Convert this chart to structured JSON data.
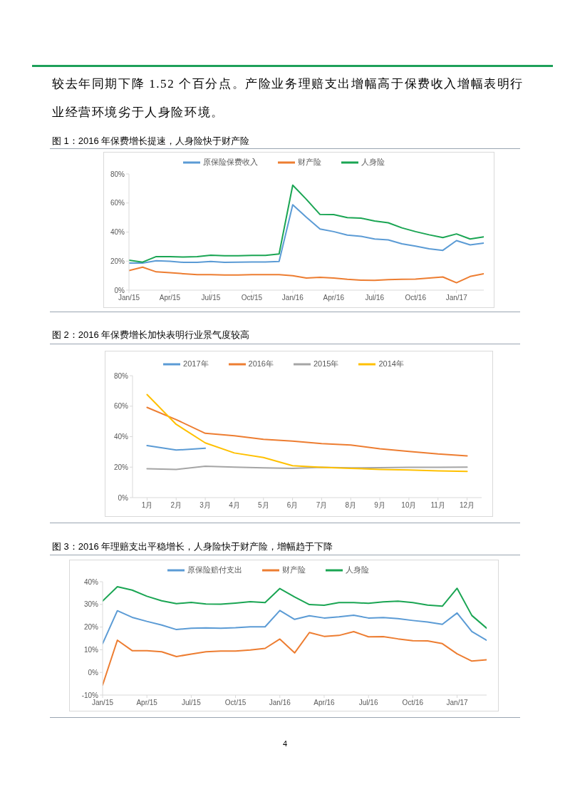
{
  "chart_data": [
    {
      "type": "line",
      "title": "图 1：2016 年保费增长提速，人身险快于财产险",
      "annotations": [
        "较去年同期下降 1.52 个百分点。产险业务理赔支出增幅高于保费收入增幅表明行业经营环境劣于人身险环境。"
      ],
      "categories": [
        "Jan/15",
        null,
        null,
        "Apr/15",
        null,
        null,
        "Jul/15",
        null,
        null,
        "Oct/15",
        null,
        null,
        "Jan/16",
        null,
        null,
        "Apr/16",
        null,
        null,
        "Jul/16",
        null,
        null,
        "Oct/16",
        null,
        null,
        "Jan/17",
        null,
        null
      ],
      "series": [
        {
          "name": "原保险保费收入",
          "color": "#5b9bd5",
          "values": [
            18.6,
            18.6,
            20.2,
            19.9,
            19.1,
            19.1,
            19.8,
            19.1,
            19.3,
            19.4,
            19.4,
            19.8,
            58.8,
            50.2,
            42.1,
            40.3,
            37.9,
            37.1,
            35.2,
            34.6,
            31.9,
            30.3,
            28.5,
            27.4,
            34.1,
            31.2,
            32.4
          ]
        },
        {
          "name": "财产险",
          "color": "#ed7d31",
          "values": [
            13.5,
            15.8,
            12.6,
            12.0,
            11.3,
            10.7,
            10.7,
            10.4,
            10.4,
            10.7,
            10.7,
            10.7,
            9.9,
            8.3,
            8.8,
            8.4,
            7.5,
            6.9,
            6.7,
            7.2,
            7.5,
            7.6,
            8.4,
            9.1,
            5.1,
            9.4,
            11.3
          ]
        },
        {
          "name": "人身险",
          "color": "#1aa553",
          "values": [
            20.6,
            19.3,
            23.1,
            23.1,
            22.8,
            23.1,
            24.1,
            23.7,
            23.7,
            23.9,
            23.9,
            24.9,
            72.3,
            62.5,
            52.1,
            52.0,
            49.9,
            49.6,
            47.6,
            46.4,
            42.9,
            40.3,
            38.1,
            36.2,
            38.7,
            35.2,
            36.7
          ]
        }
      ],
      "ylim": [
        0,
        80
      ],
      "yticks": [
        {
          "value": 0,
          "label": "0%"
        },
        {
          "value": 20,
          "label": "20%"
        },
        {
          "value": 40,
          "label": "40%"
        },
        {
          "value": 60,
          "label": "60%"
        },
        {
          "value": 80,
          "label": "80%"
        }
      ],
      "legend": "top"
    },
    {
      "type": "line",
      "title": "图 2：2016 年保费增长加快表明行业景气度较高",
      "categories": [
        "1月",
        "2月",
        "3月",
        "4月",
        "5月",
        "6月",
        "7月",
        "8月",
        "9月",
        "10月",
        "11月",
        "12月"
      ],
      "series": [
        {
          "name": "2017年",
          "color": "#5b9bd5",
          "values": [
            34.1,
            31.2,
            32.4,
            null,
            null,
            null,
            null,
            null,
            null,
            null,
            null,
            null
          ]
        },
        {
          "name": "2016年",
          "color": "#ed7d31",
          "values": [
            59.2,
            51.2,
            42.2,
            40.6,
            38.2,
            37.1,
            35.4,
            34.5,
            32.1,
            30.3,
            28.6,
            27.4
          ]
        },
        {
          "name": "2015年",
          "color": "#a5a5a5",
          "values": [
            19.0,
            18.5,
            20.6,
            20.0,
            19.5,
            19.2,
            19.9,
            19.5,
            19.7,
            19.9,
            19.9,
            20.0
          ]
        },
        {
          "name": "2014年",
          "color": "#ffc000",
          "values": [
            67.6,
            48.1,
            35.9,
            29.3,
            26.3,
            20.9,
            19.9,
            19.2,
            18.5,
            18.1,
            17.6,
            17.2
          ]
        }
      ],
      "ylim": [
        0,
        80
      ],
      "yticks": [
        {
          "value": 0,
          "label": "0%"
        },
        {
          "value": 20,
          "label": "20%"
        },
        {
          "value": 40,
          "label": "40%"
        },
        {
          "value": 60,
          "label": "60%"
        },
        {
          "value": 80,
          "label": "80%"
        }
      ],
      "legend": "top"
    },
    {
      "type": "line",
      "title": "图 3：2016 年理赔支出平稳增长，人身险快于财产险，增幅趋于下降",
      "annotations": [
        "4"
      ],
      "categories": [
        "Jan/15",
        null,
        null,
        "Apr/15",
        null,
        null,
        "Jul/15",
        null,
        null,
        "Oct/15",
        null,
        null,
        "Jan/16",
        null,
        null,
        "Apr/16",
        null,
        null,
        "Jul/16",
        null,
        null,
        "Oct/16",
        null,
        null,
        "Jan/17",
        null,
        null
      ],
      "series": [
        {
          "name": "原保险赔付支出",
          "color": "#5b9bd5",
          "values": [
            12.7,
            27.2,
            24.3,
            22.5,
            20.9,
            18.9,
            19.5,
            19.6,
            19.5,
            19.7,
            20.1,
            20.1,
            27.3,
            23.4,
            25.0,
            24.0,
            24.5,
            25.2,
            24.0,
            24.2,
            23.7,
            22.9,
            22.2,
            21.2,
            26.2,
            18.0,
            14.2
          ]
        },
        {
          "name": "财产险",
          "color": "#ed7d31",
          "values": [
            -5.6,
            14.2,
            9.6,
            9.6,
            9.1,
            7.0,
            8.1,
            9.1,
            9.4,
            9.4,
            9.9,
            10.6,
            14.7,
            8.6,
            17.6,
            15.9,
            16.3,
            18.0,
            15.7,
            15.8,
            14.8,
            14.0,
            13.9,
            12.7,
            8.2,
            5.0,
            5.6
          ]
        },
        {
          "name": "人身险",
          "color": "#1aa553",
          "values": [
            31.5,
            37.8,
            36.3,
            33.6,
            31.6,
            30.3,
            30.9,
            30.2,
            30.1,
            30.6,
            31.2,
            30.8,
            37.0,
            33.3,
            29.9,
            29.6,
            30.8,
            30.8,
            30.5,
            31.1,
            31.4,
            30.8,
            29.7,
            29.2,
            37.1,
            25.1,
            19.5
          ]
        }
      ],
      "ylim": [
        -10,
        40
      ],
      "yticks": [
        {
          "value": -10,
          "label": "-10%"
        },
        {
          "value": 0,
          "label": "0%"
        },
        {
          "value": 10,
          "label": "10%"
        },
        {
          "value": 20,
          "label": "20%"
        },
        {
          "value": 30,
          "label": "30%"
        },
        {
          "value": 40,
          "label": "40%"
        }
      ],
      "legend": "top"
    }
  ]
}
